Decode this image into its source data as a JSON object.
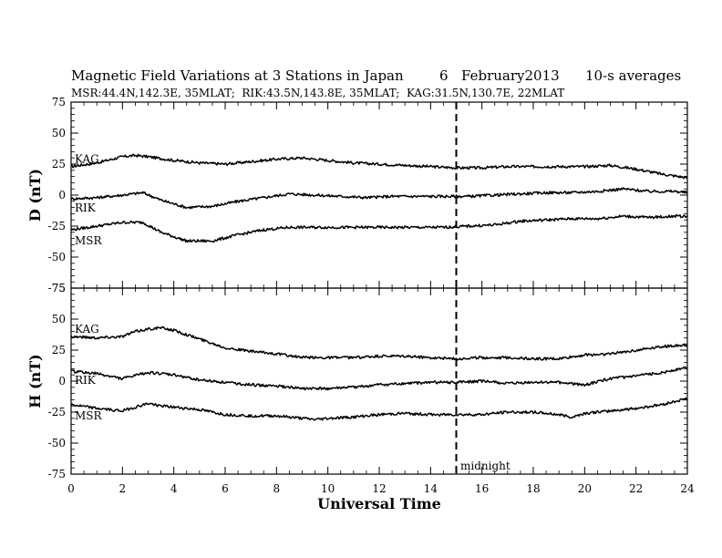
{
  "header": {
    "title": "Magnetic Field Variations at 3 Stations in Japan",
    "day": "6",
    "date": "February2013",
    "averaging": "10-s averages",
    "stations_line": "MSR:44.4N,142.3E, 35MLAT;  RIK:43.5N,143.8E, 35MLAT;  KAG:31.5N,130.7E, 22MLAT"
  },
  "annotation": {
    "midnight": "midnight"
  },
  "colors": {
    "line": "#000000",
    "background": "#ffffff"
  },
  "chart_data": [
    {
      "type": "line",
      "panel": "top",
      "ylabel": "D (nT)",
      "ylim": [
        -75,
        75
      ],
      "yticks": [
        -75,
        -50,
        -25,
        0,
        25,
        50,
        75
      ],
      "xlim": [
        0,
        24
      ],
      "vline_x": 15,
      "grid": false,
      "series": [
        {
          "name": "KAG",
          "x": [
            0,
            1,
            2,
            2.5,
            3,
            4,
            5,
            6,
            7,
            8,
            9,
            10,
            11,
            12,
            13,
            14,
            15,
            16,
            17,
            18,
            19,
            20,
            21,
            22,
            23,
            24
          ],
          "values": [
            23,
            26,
            31,
            32,
            31,
            28,
            26,
            25,
            27,
            29,
            30,
            28,
            26,
            25,
            24,
            23,
            22,
            22,
            23,
            23,
            23,
            23,
            24,
            21,
            17,
            14
          ]
        },
        {
          "name": "RIK",
          "x": [
            0,
            1,
            2,
            2.8,
            3.5,
            4.5,
            5.5,
            6.5,
            7.5,
            8.5,
            9.5,
            10.5,
            11.5,
            12.5,
            13.5,
            14.5,
            15.5,
            16.5,
            17.5,
            18.5,
            19.5,
            20.5,
            21.5,
            22.5,
            23.5,
            24
          ],
          "values": [
            -3,
            -2,
            0,
            2,
            -4,
            -10,
            -9,
            -5,
            -2,
            1,
            0,
            -1,
            -2,
            -1,
            -1,
            -1,
            -1,
            0,
            1,
            2,
            2,
            3,
            5,
            3,
            3,
            2
          ]
        },
        {
          "name": "MSR",
          "x": [
            0,
            1,
            2,
            2.8,
            3.5,
            4.5,
            5.5,
            6.5,
            7.5,
            8.5,
            9.5,
            10.5,
            11.5,
            12.5,
            13.5,
            14.5,
            15.5,
            16.5,
            17.5,
            18.5,
            19.5,
            20.5,
            21.5,
            22.5,
            23.5,
            24
          ],
          "values": [
            -28,
            -25,
            -22,
            -22,
            -30,
            -37,
            -37,
            -32,
            -28,
            -26,
            -26,
            -26,
            -26,
            -26,
            -26,
            -26,
            -25,
            -24,
            -21,
            -20,
            -19,
            -19,
            -17,
            -18,
            -17,
            -17
          ]
        }
      ]
    },
    {
      "type": "line",
      "panel": "bottom",
      "xlabel": "Universal Time",
      "ylabel": "H (nT)",
      "ylim": [
        -75,
        75
      ],
      "yticks": [
        -75,
        -50,
        -25,
        0,
        25,
        50,
        75
      ],
      "xlim": [
        0,
        24
      ],
      "xticks": [
        0,
        2,
        4,
        6,
        8,
        10,
        12,
        14,
        16,
        18,
        20,
        22,
        24
      ],
      "vline_x": 15,
      "grid": false,
      "series": [
        {
          "name": "KAG",
          "x": [
            0,
            1,
            2,
            2.5,
            3,
            3.5,
            4,
            5,
            6,
            7,
            8,
            9,
            10,
            11,
            12,
            13,
            14,
            15,
            16,
            17,
            18,
            19,
            20,
            21,
            22,
            23,
            24
          ],
          "values": [
            36,
            35,
            36,
            40,
            42,
            43,
            41,
            34,
            27,
            24,
            22,
            19,
            19,
            19,
            20,
            20,
            19,
            18,
            19,
            19,
            18,
            18,
            21,
            22,
            25,
            28,
            29
          ]
        },
        {
          "name": "RIK",
          "x": [
            0,
            1,
            2,
            3,
            4,
            5,
            6,
            7,
            8,
            9,
            10,
            11,
            12,
            13,
            14,
            15,
            16,
            17,
            18,
            19,
            20,
            21,
            22,
            23,
            24
          ],
          "values": [
            8,
            6,
            2,
            7,
            5,
            1,
            -1,
            -3,
            -4,
            -6,
            -6,
            -5,
            -3,
            -2,
            -1,
            -1,
            0,
            -2,
            -1,
            -1,
            -3,
            2,
            4,
            7,
            11
          ]
        },
        {
          "name": "MSR",
          "x": [
            0,
            1,
            2,
            3,
            3.5,
            4,
            5,
            6,
            7,
            8,
            9,
            9.5,
            10,
            11,
            12,
            13,
            14,
            15,
            16,
            17,
            18,
            19,
            19.5,
            20,
            21,
            22,
            23,
            24
          ],
          "values": [
            -19,
            -22,
            -24,
            -18,
            -20,
            -21,
            -23,
            -27,
            -28,
            -28,
            -30,
            -31,
            -30,
            -29,
            -27,
            -26,
            -27,
            -27,
            -27,
            -25,
            -25,
            -27,
            -29,
            -26,
            -24,
            -22,
            -19,
            -14
          ]
        }
      ]
    }
  ]
}
